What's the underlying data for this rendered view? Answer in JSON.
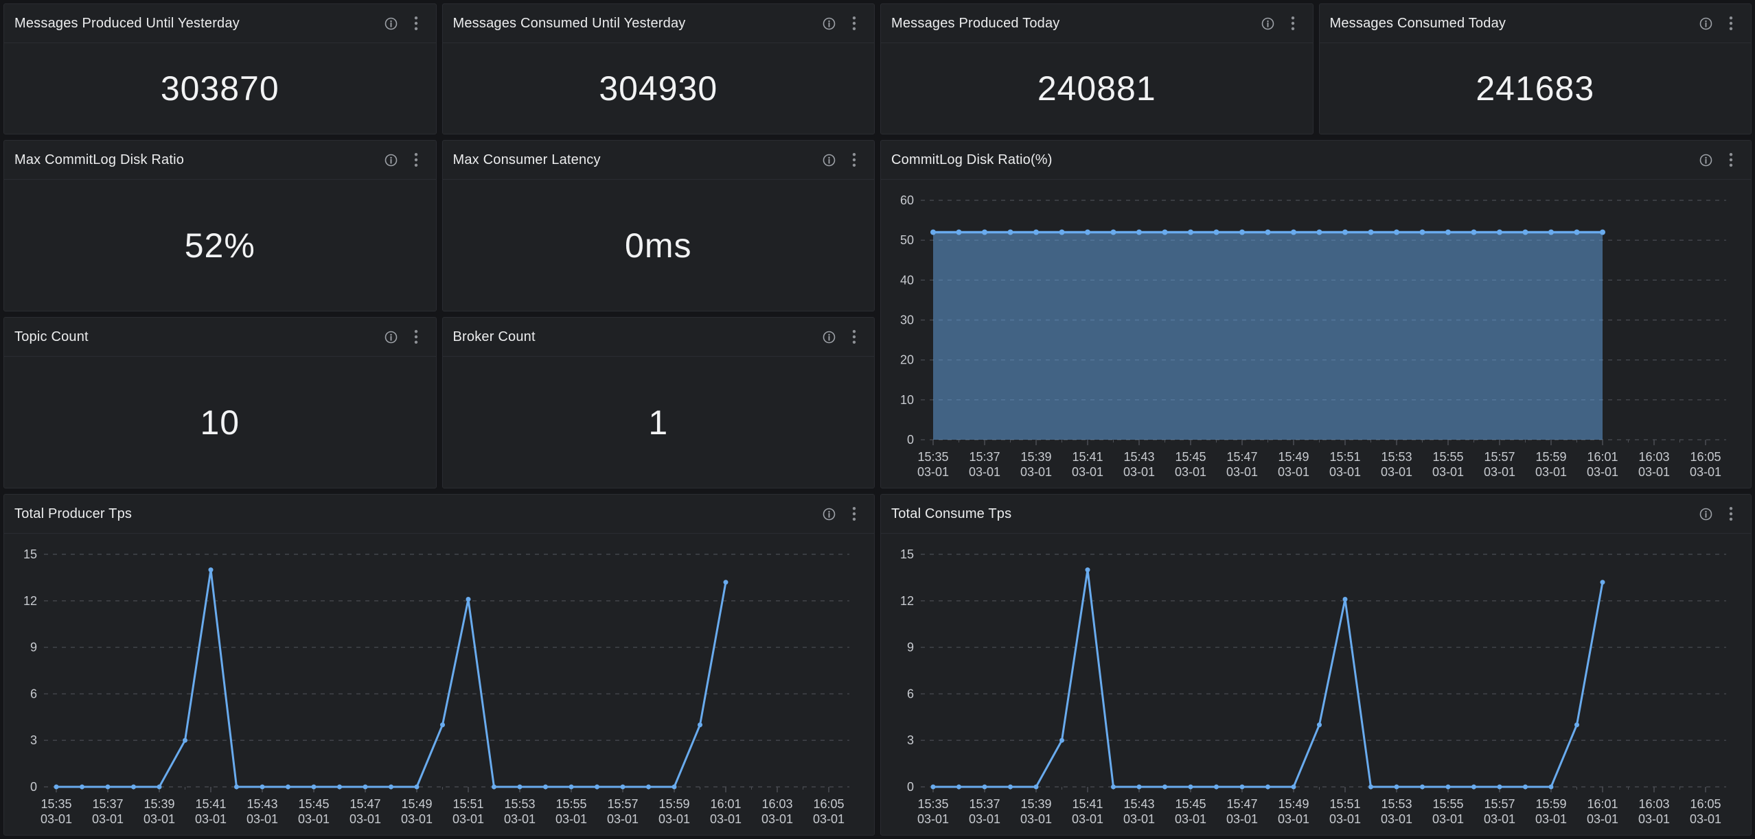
{
  "colors": {
    "page_bg": "#141518",
    "panel_bg": "#1f2124",
    "panel_border": "#2a2c31",
    "title_text": "#ecedee",
    "stat_text": "#f2f3f4",
    "axis_text": "#c8cbd0",
    "grid": "#44474d",
    "tick": "#4e5157",
    "icon": "#9da1a7",
    "accent_blue": "#69abee"
  },
  "dashboard": {
    "stat_panels": [
      {
        "id": "produced-yesterday",
        "title": "Messages Produced Until Yesterday",
        "value": "303870"
      },
      {
        "id": "consumed-yesterday",
        "title": "Messages Consumed Until Yesterday",
        "value": "304930"
      },
      {
        "id": "produced-today",
        "title": "Messages Produced Today",
        "value": "240881"
      },
      {
        "id": "consumed-today",
        "title": "Messages Consumed Today",
        "value": "241683"
      },
      {
        "id": "max-commitlog-disk-ratio",
        "title": "Max CommitLog Disk Ratio",
        "value": "52%"
      },
      {
        "id": "max-consumer-latency",
        "title": "Max Consumer Latency",
        "value": "0ms"
      },
      {
        "id": "topic-count",
        "title": "Topic Count",
        "value": "10"
      },
      {
        "id": "broker-count",
        "title": "Broker Count",
        "value": "1"
      }
    ],
    "panel_icons": [
      {
        "name": "info-icon",
        "glyph": "circled-i"
      },
      {
        "name": "kebab-menu-icon",
        "glyph": "vertical-ellipsis"
      }
    ]
  },
  "chart_data": [
    {
      "id": "commitlog-disk-ratio",
      "type": "area",
      "title": "CommitLog Disk Ratio(%)",
      "xlabel": "",
      "ylabel": "",
      "ylim": [
        0,
        60
      ],
      "yticks": [
        0,
        10,
        20,
        30,
        40,
        50,
        60
      ],
      "grid": "dashed",
      "legend_position": "none",
      "line_color": "#69abee",
      "fill_opacity": 0.48,
      "line_width": 3.5,
      "marker_radius": 4,
      "x": [
        "15:35",
        "15:36",
        "15:37",
        "15:38",
        "15:39",
        "15:40",
        "15:41",
        "15:42",
        "15:43",
        "15:44",
        "15:45",
        "15:46",
        "15:47",
        "15:48",
        "15:49",
        "15:50",
        "15:51",
        "15:52",
        "15:53",
        "15:54",
        "15:55",
        "15:56",
        "15:57",
        "15:58",
        "15:59",
        "16:00",
        "16:01"
      ],
      "values": [
        52,
        52,
        52,
        52,
        52,
        52,
        52,
        52,
        52,
        52,
        52,
        52,
        52,
        52,
        52,
        52,
        52,
        52,
        52,
        52,
        52,
        52,
        52,
        52,
        52,
        52,
        52
      ],
      "xticks": [
        {
          "time": "15:35",
          "date": "03-01"
        },
        {
          "time": "15:37",
          "date": "03-01"
        },
        {
          "time": "15:39",
          "date": "03-01"
        },
        {
          "time": "15:41",
          "date": "03-01"
        },
        {
          "time": "15:43",
          "date": "03-01"
        },
        {
          "time": "15:45",
          "date": "03-01"
        },
        {
          "time": "15:47",
          "date": "03-01"
        },
        {
          "time": "15:49",
          "date": "03-01"
        },
        {
          "time": "15:51",
          "date": "03-01"
        },
        {
          "time": "15:53",
          "date": "03-01"
        },
        {
          "time": "15:55",
          "date": "03-01"
        },
        {
          "time": "15:57",
          "date": "03-01"
        },
        {
          "time": "15:59",
          "date": "03-01"
        },
        {
          "time": "16:01",
          "date": "03-01"
        },
        {
          "time": "16:03",
          "date": "03-01"
        },
        {
          "time": "16:05",
          "date": "03-01"
        }
      ]
    },
    {
      "id": "total-producer-tps",
      "type": "line",
      "title": "Total Producer Tps",
      "xlabel": "",
      "ylabel": "",
      "ylim": [
        0,
        15
      ],
      "yticks": [
        0,
        3,
        6,
        9,
        12,
        15
      ],
      "grid": "dashed",
      "legend_position": "none",
      "line_color": "#69abee",
      "fill_opacity": 0,
      "line_width": 3,
      "marker_radius": 3.5,
      "x": [
        "15:35",
        "15:36",
        "15:37",
        "15:38",
        "15:39",
        "15:40",
        "15:41",
        "15:42",
        "15:43",
        "15:44",
        "15:45",
        "15:46",
        "15:47",
        "15:48",
        "15:49",
        "15:50",
        "15:51",
        "15:52",
        "15:53",
        "15:54",
        "15:55",
        "15:56",
        "15:57",
        "15:58",
        "15:59",
        "16:00",
        "16:01"
      ],
      "values": [
        0,
        0,
        0,
        0,
        0,
        3,
        14,
        0,
        0,
        0,
        0,
        0,
        0,
        0,
        0,
        4,
        12.1,
        0,
        0,
        0,
        0,
        0,
        0,
        0,
        0,
        4,
        13.2
      ],
      "xticks": [
        {
          "time": "15:35",
          "date": "03-01"
        },
        {
          "time": "15:37",
          "date": "03-01"
        },
        {
          "time": "15:39",
          "date": "03-01"
        },
        {
          "time": "15:41",
          "date": "03-01"
        },
        {
          "time": "15:43",
          "date": "03-01"
        },
        {
          "time": "15:45",
          "date": "03-01"
        },
        {
          "time": "15:47",
          "date": "03-01"
        },
        {
          "time": "15:49",
          "date": "03-01"
        },
        {
          "time": "15:51",
          "date": "03-01"
        },
        {
          "time": "15:53",
          "date": "03-01"
        },
        {
          "time": "15:55",
          "date": "03-01"
        },
        {
          "time": "15:57",
          "date": "03-01"
        },
        {
          "time": "15:59",
          "date": "03-01"
        },
        {
          "time": "16:01",
          "date": "03-01"
        },
        {
          "time": "16:03",
          "date": "03-01"
        },
        {
          "time": "16:05",
          "date": "03-01"
        }
      ]
    },
    {
      "id": "total-consume-tps",
      "type": "line",
      "title": "Total Consume Tps",
      "xlabel": "",
      "ylabel": "",
      "ylim": [
        0,
        15
      ],
      "yticks": [
        0,
        3,
        6,
        9,
        12,
        15
      ],
      "grid": "dashed",
      "legend_position": "none",
      "line_color": "#69abee",
      "fill_opacity": 0,
      "line_width": 3,
      "marker_radius": 3.5,
      "x": [
        "15:35",
        "15:36",
        "15:37",
        "15:38",
        "15:39",
        "15:40",
        "15:41",
        "15:42",
        "15:43",
        "15:44",
        "15:45",
        "15:46",
        "15:47",
        "15:48",
        "15:49",
        "15:50",
        "15:51",
        "15:52",
        "15:53",
        "15:54",
        "15:55",
        "15:56",
        "15:57",
        "15:58",
        "15:59",
        "16:00",
        "16:01"
      ],
      "values": [
        0,
        0,
        0,
        0,
        0,
        3,
        14,
        0,
        0,
        0,
        0,
        0,
        0,
        0,
        0,
        4,
        12.1,
        0,
        0,
        0,
        0,
        0,
        0,
        0,
        0,
        4,
        13.2
      ],
      "xticks": [
        {
          "time": "15:35",
          "date": "03-01"
        },
        {
          "time": "15:37",
          "date": "03-01"
        },
        {
          "time": "15:39",
          "date": "03-01"
        },
        {
          "time": "15:41",
          "date": "03-01"
        },
        {
          "time": "15:43",
          "date": "03-01"
        },
        {
          "time": "15:45",
          "date": "03-01"
        },
        {
          "time": "15:47",
          "date": "03-01"
        },
        {
          "time": "15:49",
          "date": "03-01"
        },
        {
          "time": "15:51",
          "date": "03-01"
        },
        {
          "time": "15:53",
          "date": "03-01"
        },
        {
          "time": "15:55",
          "date": "03-01"
        },
        {
          "time": "15:57",
          "date": "03-01"
        },
        {
          "time": "15:59",
          "date": "03-01"
        },
        {
          "time": "16:01",
          "date": "03-01"
        },
        {
          "time": "16:03",
          "date": "03-01"
        },
        {
          "time": "16:05",
          "date": "03-01"
        }
      ]
    }
  ]
}
